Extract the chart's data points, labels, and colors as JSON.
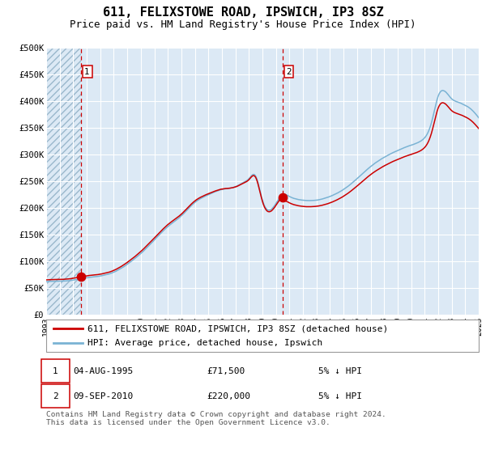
{
  "title": "611, FELIXSTOWE ROAD, IPSWICH, IP3 8SZ",
  "subtitle": "Price paid vs. HM Land Registry's House Price Index (HPI)",
  "ylim": [
    0,
    500000
  ],
  "yticks": [
    0,
    50000,
    100000,
    150000,
    200000,
    250000,
    300000,
    350000,
    400000,
    450000,
    500000
  ],
  "ytick_labels": [
    "£0",
    "£50K",
    "£100K",
    "£150K",
    "£200K",
    "£250K",
    "£300K",
    "£350K",
    "£400K",
    "£450K",
    "£500K"
  ],
  "hpi_color": "#7ab3d4",
  "price_color": "#cc0000",
  "bg_color": "#dce9f5",
  "grid_color": "#ffffff",
  "dashed_line_color": "#cc0000",
  "point1_date_idx": 31,
  "point1_price": 71500,
  "point1_label": "1",
  "point1_date_str": "04-AUG-1995",
  "point1_price_str": "£71,500",
  "point1_hpi_str": "5% ↓ HPI",
  "point2_date_idx": 210,
  "point2_price": 220000,
  "point2_label": "2",
  "point2_date_str": "09-SEP-2010",
  "point2_price_str": "£220,000",
  "point2_hpi_str": "5% ↓ HPI",
  "legend_label1": "611, FELIXSTOWE ROAD, IPSWICH, IP3 8SZ (detached house)",
  "legend_label2": "HPI: Average price, detached house, Ipswich",
  "footer": "Contains HM Land Registry data © Crown copyright and database right 2024.\nThis data is licensed under the Open Government Licence v3.0.",
  "title_fontsize": 11,
  "subtitle_fontsize": 9,
  "tick_fontsize": 7.5,
  "legend_fontsize": 8
}
